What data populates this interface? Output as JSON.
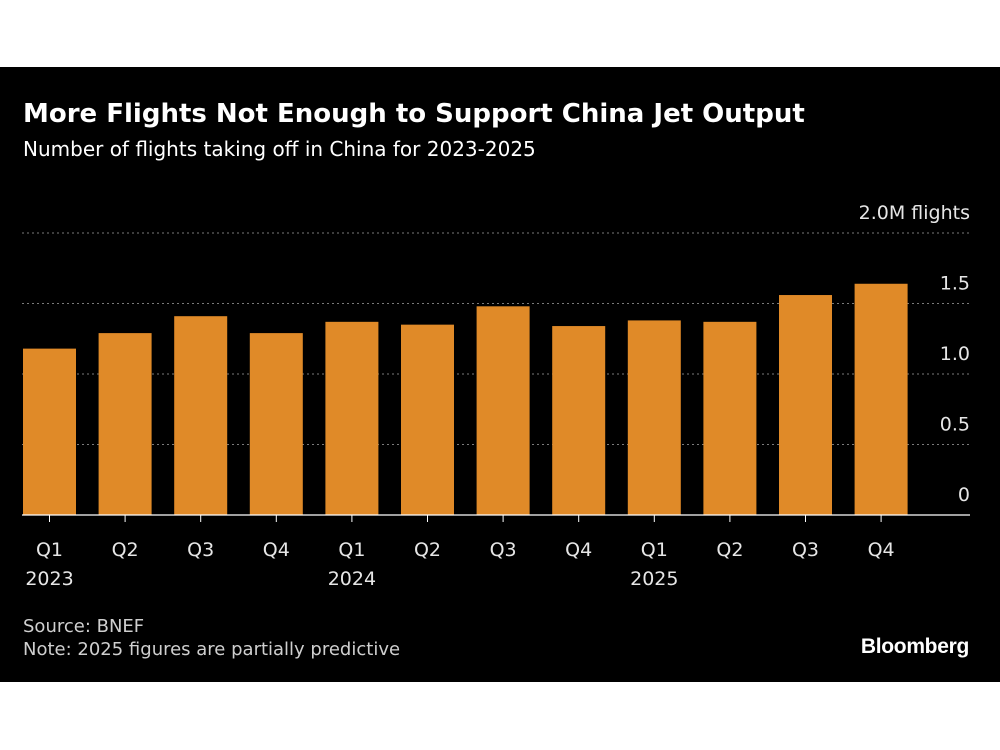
{
  "title": "More Flights Not Enough to Support China Jet Output",
  "subtitle": "Number of flights taking off in China for 2023-2025",
  "source": "Source: BNEF",
  "note": "Note: 2025 figures are partially predictive",
  "brand": "Bloomberg",
  "chart_data": {
    "type": "bar",
    "title": "More Flights Not Enough to Support China Jet Output",
    "subtitle": "Number of flights taking off in China for 2023-2025",
    "categories": [
      "Q1",
      "Q2",
      "Q3",
      "Q4",
      "Q1",
      "Q2",
      "Q3",
      "Q4",
      "Q1",
      "Q2",
      "Q3",
      "Q4"
    ],
    "years": [
      "2023",
      "",
      "",
      "",
      "2024",
      "",
      "",
      "",
      "2025",
      "",
      "",
      ""
    ],
    "values": [
      1.18,
      1.29,
      1.41,
      1.29,
      1.37,
      1.35,
      1.48,
      1.34,
      1.38,
      1.37,
      1.56,
      1.64
    ],
    "unit": "M flights",
    "ylim": [
      0,
      2.0
    ],
    "yticks": [
      0,
      0.5,
      1.0,
      1.5,
      2.0
    ],
    "ytick_labels": [
      "0",
      "0.5",
      "1.0",
      "1.5",
      "2.0M flights"
    ],
    "grid": true,
    "bar_color": "#e08a28",
    "background": "#000000"
  }
}
